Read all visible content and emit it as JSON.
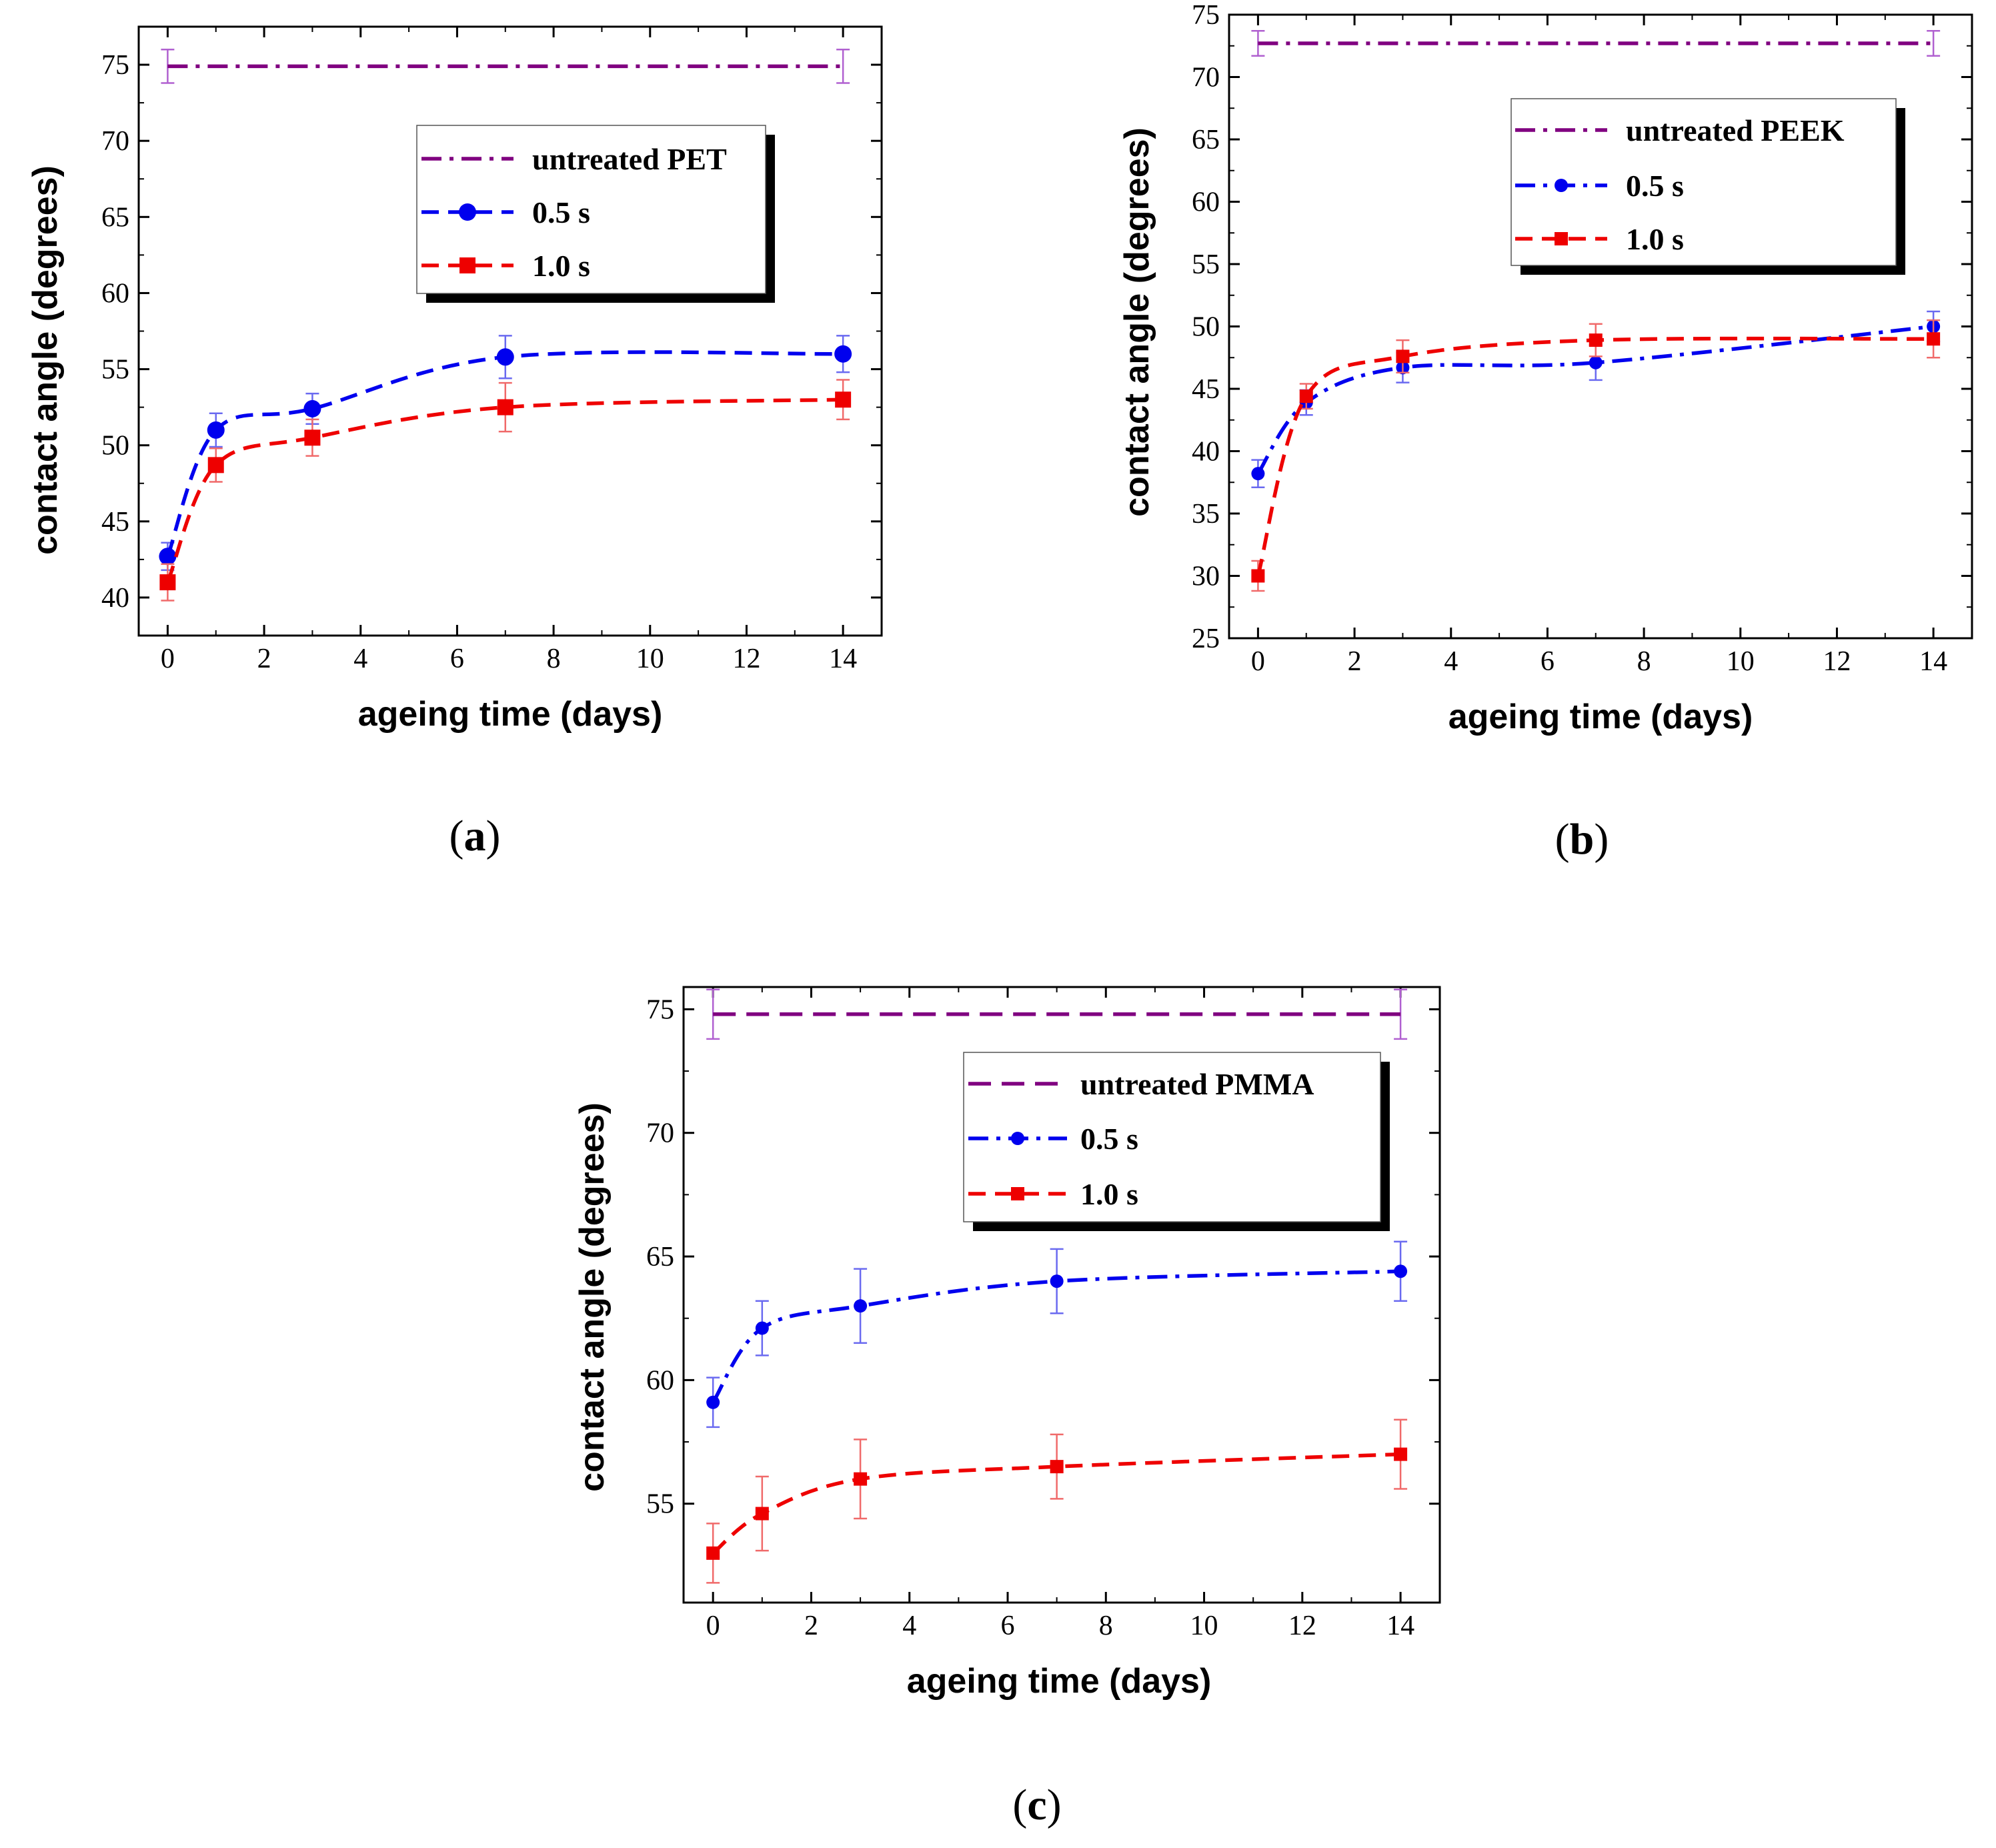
{
  "colors": {
    "untreated": "#800080",
    "s05": "#0000ee",
    "s10": "#ee0000",
    "err_untreated": "#b060d0",
    "err_s05": "#6a6af0",
    "err_s10": "#f06a6a"
  },
  "chart_data": [
    {
      "type": "line",
      "panel": "(a)",
      "panel_letter": "a",
      "xlabel": "ageing time (days)",
      "ylabel": "contact angle (degrees)",
      "xlim": [
        -0.6,
        14.8
      ],
      "ylim": [
        37.5,
        77.5
      ],
      "xticks": [
        0,
        2,
        4,
        6,
        8,
        10,
        12,
        14
      ],
      "yticks": [
        40,
        45,
        50,
        55,
        60,
        65,
        70,
        75
      ],
      "legend": [
        "untreated PET",
        "0.5 s",
        "1.0 s"
      ],
      "series": [
        {
          "name": "untreated PET",
          "key": "untreated",
          "x": [
            0,
            14
          ],
          "y": [
            74.9,
            74.9
          ],
          "err": [
            1.1,
            1.1
          ],
          "dash": "dashdot",
          "marker": "none"
        },
        {
          "name": "0.5 s",
          "key": "s05",
          "x": [
            0,
            1,
            3,
            7,
            14
          ],
          "y": [
            42.7,
            51.0,
            52.4,
            55.8,
            56.0
          ],
          "err": [
            0.9,
            1.1,
            1.0,
            1.4,
            1.2
          ],
          "dash": "dash",
          "marker": "circle"
        },
        {
          "name": "1.0 s",
          "key": "s10",
          "x": [
            0,
            1,
            3,
            7,
            14
          ],
          "y": [
            41.0,
            48.7,
            50.5,
            52.5,
            53.0
          ],
          "err": [
            1.2,
            1.1,
            1.2,
            1.6,
            1.3
          ],
          "dash": "dash",
          "marker": "square"
        }
      ]
    },
    {
      "type": "line",
      "panel": "(b)",
      "panel_letter": "b",
      "xlabel": "ageing time (days)",
      "ylabel": "contact angle (degrees)",
      "xlim": [
        -0.6,
        14.8
      ],
      "ylim": [
        25,
        75
      ],
      "xticks": [
        0,
        2,
        4,
        6,
        8,
        10,
        12,
        14
      ],
      "yticks": [
        25,
        30,
        35,
        40,
        45,
        50,
        55,
        60,
        65,
        70,
        75
      ],
      "legend": [
        "untreated PEEK",
        "0.5 s",
        "1.0 s"
      ],
      "series": [
        {
          "name": "untreated PEEK",
          "key": "untreated",
          "x": [
            0,
            14
          ],
          "y": [
            72.7,
            72.7
          ],
          "err": [
            1.0,
            1.0
          ],
          "dash": "dashdot",
          "marker": "none"
        },
        {
          "name": "0.5 s",
          "key": "s05",
          "x": [
            0,
            1,
            3,
            7,
            14
          ],
          "y": [
            38.2,
            43.9,
            46.7,
            47.1,
            50.0
          ],
          "err": [
            1.1,
            1.0,
            1.2,
            1.4,
            1.2
          ],
          "dash": "dashdot",
          "marker": "smallcircle"
        },
        {
          "name": "1.0 s",
          "key": "s10",
          "x": [
            0,
            1,
            3,
            7,
            14
          ],
          "y": [
            30.0,
            44.4,
            47.6,
            48.9,
            49.0
          ],
          "err": [
            1.2,
            1.0,
            1.3,
            1.3,
            1.5
          ],
          "dash": "dash",
          "marker": "smallsquare"
        }
      ]
    },
    {
      "type": "line",
      "panel": "(c)",
      "panel_letter": "c",
      "xlabel": "ageing time (days)",
      "ylabel": "contact angle (degrees)",
      "xlim": [
        -0.6,
        14.8
      ],
      "ylim": [
        51.0,
        75.9
      ],
      "xticks": [
        0,
        2,
        4,
        6,
        8,
        10,
        12,
        14
      ],
      "yticks": [
        55,
        60,
        65,
        70,
        75
      ],
      "legend": [
        "untreated PMMA",
        "0.5 s",
        "1.0 s"
      ],
      "series": [
        {
          "name": "untreated PMMA",
          "key": "untreated",
          "x": [
            0,
            14
          ],
          "y": [
            74.8,
            74.8
          ],
          "err": [
            1.0,
            1.0
          ],
          "dash": "longdash",
          "marker": "none"
        },
        {
          "name": "0.5 s",
          "key": "s05",
          "x": [
            0,
            1,
            3,
            7,
            14
          ],
          "y": [
            59.1,
            62.1,
            63.0,
            64.0,
            64.4
          ],
          "err": [
            1.0,
            1.1,
            1.5,
            1.3,
            1.2
          ],
          "dash": "dashdot",
          "marker": "smallcircle"
        },
        {
          "name": "1.0 s",
          "key": "s10",
          "x": [
            0,
            1,
            3,
            7,
            14
          ],
          "y": [
            53.0,
            54.6,
            56.0,
            56.5,
            57.0
          ],
          "err": [
            1.2,
            1.5,
            1.6,
            1.3,
            1.4
          ],
          "dash": "dash",
          "marker": "smallsquare"
        }
      ]
    }
  ]
}
